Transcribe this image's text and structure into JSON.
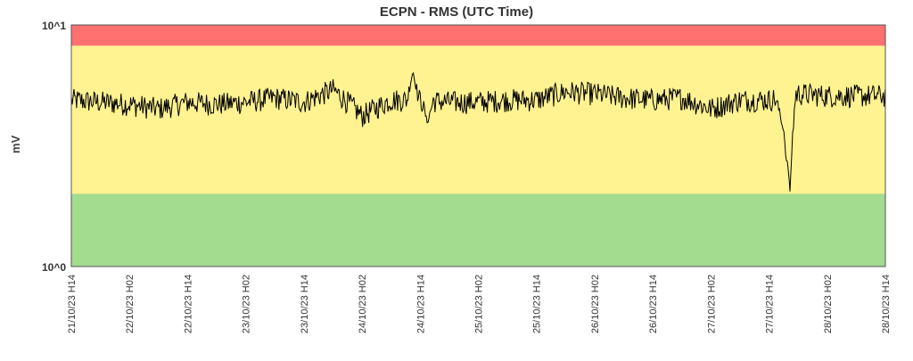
{
  "chart_data": {
    "type": "line",
    "title": "ECPN - RMS (UTC Time)",
    "xlabel": "",
    "ylabel": "mV",
    "y_scale": "log",
    "ylim": [
      1,
      10
    ],
    "y_tick_labels": [
      "10^1",
      "10^0"
    ],
    "x_tick_labels": [
      "21/10/23 H14",
      "22/10/23 H02",
      "22/10/23 H14",
      "23/10/23 H02",
      "23/10/23 H14",
      "24/10/23 H02",
      "24/10/23 H14",
      "25/10/23 H02",
      "25/10/23 H14",
      "26/10/23 H02",
      "26/10/23 H14",
      "27/10/23 H02",
      "27/10/23 H14",
      "28/10/23 H02",
      "28/10/23 H14"
    ],
    "bands": [
      {
        "name": "red",
        "from": 8.2,
        "to": 10,
        "color": "#ff7070"
      },
      {
        "name": "yellow",
        "from": 2.0,
        "to": 8.2,
        "color": "#fff290"
      },
      {
        "name": "green",
        "from": 1,
        "to": 2.0,
        "color": "#a3db8f"
      }
    ],
    "series": [
      {
        "color": "#000000",
        "x_hours": [
          0,
          6,
          12,
          18,
          24,
          30,
          36,
          42,
          48,
          54,
          60,
          66,
          72,
          78,
          84,
          90,
          96,
          102,
          108,
          114,
          120,
          126,
          132,
          138,
          144,
          150,
          156,
          162,
          168
        ],
        "values": [
          4.9,
          4.8,
          4.7,
          4.5,
          4.8,
          4.7,
          4.8,
          5.0,
          4.8,
          5.4,
          4.2,
          4.9,
          4.9,
          4.8,
          4.8,
          4.9,
          4.9,
          5.3,
          5.2,
          5.0,
          4.9,
          5.0,
          4.5,
          4.9,
          4.9,
          5.2,
          5.1,
          5.1,
          5.1
        ],
        "events": [
          {
            "x_hours": 70.5,
            "value": 6.4
          },
          {
            "x_hours": 73.5,
            "value": 3.9
          },
          {
            "x_hours": 146.5,
            "value": 4.1
          },
          {
            "x_hours": 147.5,
            "value": 3.1
          },
          {
            "x_hours": 148.3,
            "value": 2.0
          }
        ]
      }
    ]
  }
}
